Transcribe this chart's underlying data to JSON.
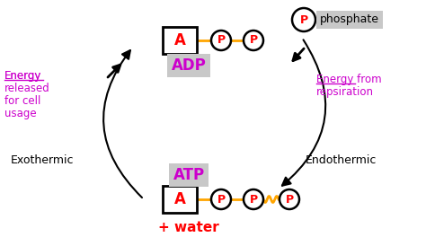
{
  "bg_color": "#ffffff",
  "purple": "#CC00CC",
  "red": "#FF0000",
  "orange": "#FFA500",
  "gray_bg": "#C8C8C8",
  "black": "#000000",
  "adp_label": "ADP",
  "atp_label": "ATP",
  "phosphate_label": "phosphate",
  "water_label": "+ water",
  "exothermic_label": "Exothermic",
  "endothermic_label": "Endothermic",
  "energy_released_lines": [
    "Energy",
    "released",
    "for cell",
    "usage"
  ],
  "energy_from_lines": [
    "Energy from",
    "repsiration"
  ],
  "figsize": [
    4.74,
    2.74
  ],
  "dpi": 100
}
